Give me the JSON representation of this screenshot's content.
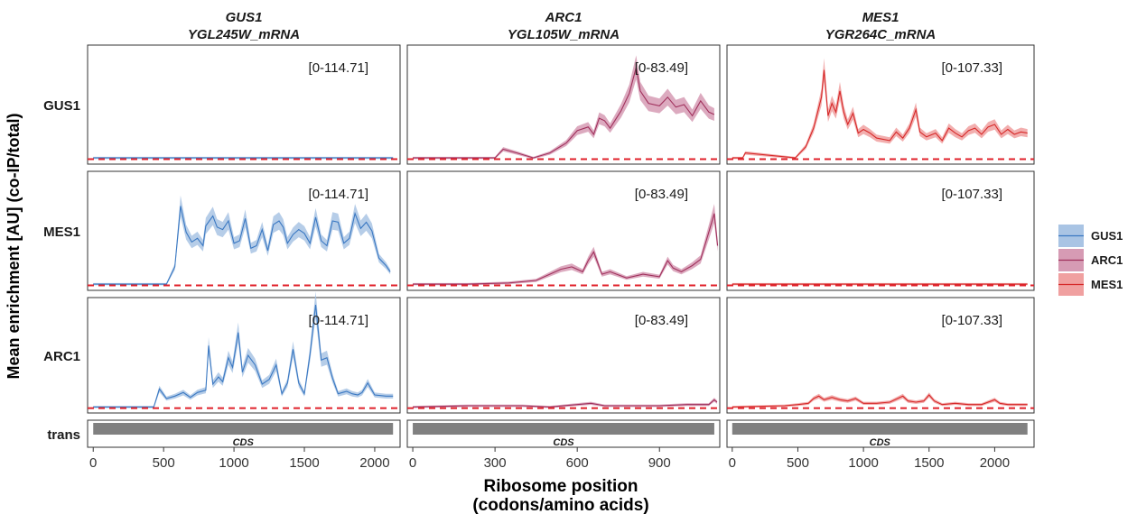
{
  "chart_data": {
    "type": "line",
    "ylabel": "Mean enrichment [AU] (co-IP/total)",
    "xlabel_line1": "Ribosome position",
    "xlabel_line2": "(codons/amino acids)",
    "columns": [
      {
        "gene": "GUS1",
        "mrna": "YGL245W_mRNA",
        "ticks": [
          0,
          500,
          1000,
          1500,
          2000
        ],
        "xlim": [
          -40,
          2180
        ],
        "cds_length": 2130,
        "range_label": "[0-114.71]"
      },
      {
        "gene": "ARC1",
        "mrna": "YGL105W_mRNA",
        "ticks": [
          0,
          300,
          600,
          900
        ],
        "xlim": [
          -20,
          1120
        ],
        "cds_length": 1100,
        "range_label": "[0-83.49]"
      },
      {
        "gene": "MES1",
        "mrna": "YGR264C_mRNA",
        "ticks": [
          0,
          500,
          1000,
          1500,
          2000
        ],
        "xlim": [
          -40,
          2300
        ],
        "cds_length": 2250,
        "range_label": "[0-107.33]"
      }
    ],
    "rows": [
      "GUS1",
      "MES1",
      "ARC1"
    ],
    "track_row_label": "trans",
    "cds_label": "CDS",
    "legend": [
      {
        "name": "GUS1",
        "line": "#3a78c2",
        "fill": "#a9c4e4"
      },
      {
        "name": "ARC1",
        "line": "#a0305c",
        "fill": "#d69bb4"
      },
      {
        "name": "MES1",
        "line": "#d62828",
        "fill": "#f0a0a0"
      }
    ],
    "baseline_color": "#e0202a",
    "panels": [
      {
        "row": "GUS1",
        "col": "GUS1",
        "series": "GUS1",
        "points": [
          [
            0,
            1
          ],
          [
            2130,
            1
          ]
        ]
      },
      {
        "row": "GUS1",
        "col": "ARC1",
        "series": "ARC1",
        "points": [
          [
            0,
            1
          ],
          [
            250,
            1
          ],
          [
            300,
            1
          ],
          [
            330,
            8
          ],
          [
            380,
            5
          ],
          [
            440,
            1
          ],
          [
            500,
            5
          ],
          [
            560,
            13
          ],
          [
            600,
            23
          ],
          [
            640,
            26
          ],
          [
            660,
            20
          ],
          [
            680,
            33
          ],
          [
            700,
            31
          ],
          [
            720,
            25
          ],
          [
            760,
            39
          ],
          [
            790,
            53
          ],
          [
            815,
            74
          ],
          [
            830,
            55
          ],
          [
            860,
            45
          ],
          [
            900,
            43
          ],
          [
            930,
            50
          ],
          [
            960,
            42
          ],
          [
            990,
            44
          ],
          [
            1020,
            35
          ],
          [
            1050,
            47
          ],
          [
            1080,
            38
          ],
          [
            1100,
            36
          ]
        ]
      },
      {
        "row": "GUS1",
        "col": "MES1",
        "series": "MES1",
        "points": [
          [
            0,
            1
          ],
          [
            80,
            1
          ],
          [
            100,
            5
          ],
          [
            480,
            1
          ],
          [
            560,
            10
          ],
          [
            620,
            25
          ],
          [
            680,
            50
          ],
          [
            700,
            72
          ],
          [
            730,
            35
          ],
          [
            760,
            45
          ],
          [
            790,
            38
          ],
          [
            820,
            55
          ],
          [
            850,
            38
          ],
          [
            880,
            28
          ],
          [
            920,
            37
          ],
          [
            960,
            21
          ],
          [
            1000,
            24
          ],
          [
            1050,
            21
          ],
          [
            1100,
            17
          ],
          [
            1200,
            15
          ],
          [
            1250,
            22
          ],
          [
            1300,
            17
          ],
          [
            1350,
            25
          ],
          [
            1400,
            40
          ],
          [
            1430,
            22
          ],
          [
            1480,
            18
          ],
          [
            1550,
            21
          ],
          [
            1600,
            15
          ],
          [
            1650,
            25
          ],
          [
            1700,
            21
          ],
          [
            1750,
            18
          ],
          [
            1800,
            23
          ],
          [
            1850,
            25
          ],
          [
            1900,
            20
          ],
          [
            1950,
            26
          ],
          [
            2000,
            28
          ],
          [
            2050,
            20
          ],
          [
            2100,
            24
          ],
          [
            2150,
            20
          ],
          [
            2200,
            22
          ],
          [
            2250,
            21
          ]
        ]
      },
      {
        "row": "MES1",
        "col": "GUS1",
        "series": "GUS1",
        "points": [
          [
            0,
            1
          ],
          [
            520,
            1
          ],
          [
            580,
            15
          ],
          [
            620,
            64
          ],
          [
            660,
            43
          ],
          [
            700,
            35
          ],
          [
            740,
            38
          ],
          [
            780,
            32
          ],
          [
            800,
            48
          ],
          [
            850,
            56
          ],
          [
            880,
            47
          ],
          [
            920,
            45
          ],
          [
            960,
            52
          ],
          [
            1000,
            34
          ],
          [
            1040,
            36
          ],
          [
            1080,
            54
          ],
          [
            1120,
            30
          ],
          [
            1160,
            32
          ],
          [
            1200,
            45
          ],
          [
            1240,
            28
          ],
          [
            1280,
            49
          ],
          [
            1320,
            52
          ],
          [
            1350,
            47
          ],
          [
            1380,
            34
          ],
          [
            1420,
            41
          ],
          [
            1460,
            45
          ],
          [
            1500,
            42
          ],
          [
            1540,
            34
          ],
          [
            1580,
            55
          ],
          [
            1620,
            36
          ],
          [
            1660,
            32
          ],
          [
            1700,
            52
          ],
          [
            1740,
            51
          ],
          [
            1780,
            34
          ],
          [
            1820,
            38
          ],
          [
            1860,
            58
          ],
          [
            1900,
            46
          ],
          [
            1940,
            51
          ],
          [
            1980,
            44
          ],
          [
            2030,
            22
          ],
          [
            2080,
            16
          ],
          [
            2110,
            11
          ]
        ]
      },
      {
        "row": "MES1",
        "col": "ARC1",
        "series": "ARC1",
        "points": [
          [
            0,
            1
          ],
          [
            200,
            1
          ],
          [
            350,
            2
          ],
          [
            450,
            4
          ],
          [
            540,
            13
          ],
          [
            580,
            15
          ],
          [
            620,
            11
          ],
          [
            640,
            20
          ],
          [
            660,
            27
          ],
          [
            690,
            9
          ],
          [
            720,
            11
          ],
          [
            780,
            6
          ],
          [
            840,
            9
          ],
          [
            900,
            7
          ],
          [
            930,
            20
          ],
          [
            950,
            14
          ],
          [
            980,
            11
          ],
          [
            1020,
            16
          ],
          [
            1050,
            21
          ],
          [
            1080,
            43
          ],
          [
            1100,
            58
          ],
          [
            1112,
            32
          ]
        ]
      },
      {
        "row": "MES1",
        "col": "MES1",
        "series": "MES1",
        "points": [
          [
            0,
            1
          ],
          [
            2250,
            1
          ]
        ]
      },
      {
        "row": "ARC1",
        "col": "GUS1",
        "series": "GUS1",
        "points": [
          [
            0,
            1
          ],
          [
            430,
            1
          ],
          [
            470,
            16
          ],
          [
            520,
            8
          ],
          [
            580,
            10
          ],
          [
            640,
            13
          ],
          [
            690,
            9
          ],
          [
            740,
            13
          ],
          [
            800,
            15
          ],
          [
            820,
            52
          ],
          [
            850,
            20
          ],
          [
            890,
            26
          ],
          [
            920,
            22
          ],
          [
            960,
            42
          ],
          [
            990,
            34
          ],
          [
            1030,
            63
          ],
          [
            1060,
            30
          ],
          [
            1100,
            44
          ],
          [
            1150,
            36
          ],
          [
            1200,
            20
          ],
          [
            1250,
            24
          ],
          [
            1300,
            36
          ],
          [
            1340,
            12
          ],
          [
            1380,
            21
          ],
          [
            1420,
            49
          ],
          [
            1460,
            21
          ],
          [
            1500,
            12
          ],
          [
            1540,
            45
          ],
          [
            1580,
            86
          ],
          [
            1620,
            40
          ],
          [
            1660,
            42
          ],
          [
            1700,
            25
          ],
          [
            1740,
            12
          ],
          [
            1770,
            13
          ],
          [
            1800,
            14
          ],
          [
            1840,
            12
          ],
          [
            1880,
            11
          ],
          [
            1910,
            13
          ],
          [
            1950,
            21
          ],
          [
            2000,
            11
          ],
          [
            2080,
            10
          ],
          [
            2130,
            10
          ]
        ]
      },
      {
        "row": "ARC1",
        "col": "ARC1",
        "series": "ARC1",
        "points": [
          [
            0,
            1
          ],
          [
            200,
            2
          ],
          [
            400,
            2
          ],
          [
            500,
            1
          ],
          [
            600,
            3
          ],
          [
            650,
            4
          ],
          [
            700,
            2
          ],
          [
            800,
            2
          ],
          [
            900,
            2
          ],
          [
            1000,
            3
          ],
          [
            1080,
            3
          ],
          [
            1100,
            7
          ],
          [
            1110,
            5
          ]
        ]
      },
      {
        "row": "ARC1",
        "col": "MES1",
        "series": "MES1",
        "points": [
          [
            0,
            1
          ],
          [
            400,
            2
          ],
          [
            500,
            3
          ],
          [
            580,
            4
          ],
          [
            620,
            8
          ],
          [
            660,
            10
          ],
          [
            700,
            7
          ],
          [
            760,
            9
          ],
          [
            820,
            7
          ],
          [
            880,
            6
          ],
          [
            940,
            8
          ],
          [
            1000,
            4
          ],
          [
            1100,
            4
          ],
          [
            1200,
            5
          ],
          [
            1300,
            10
          ],
          [
            1340,
            6
          ],
          [
            1400,
            5
          ],
          [
            1460,
            6
          ],
          [
            1500,
            11
          ],
          [
            1540,
            6
          ],
          [
            1600,
            3
          ],
          [
            1700,
            4
          ],
          [
            1800,
            3
          ],
          [
            1900,
            3
          ],
          [
            2000,
            7
          ],
          [
            2040,
            4
          ],
          [
            2100,
            3
          ],
          [
            2250,
            3
          ]
        ]
      }
    ]
  }
}
